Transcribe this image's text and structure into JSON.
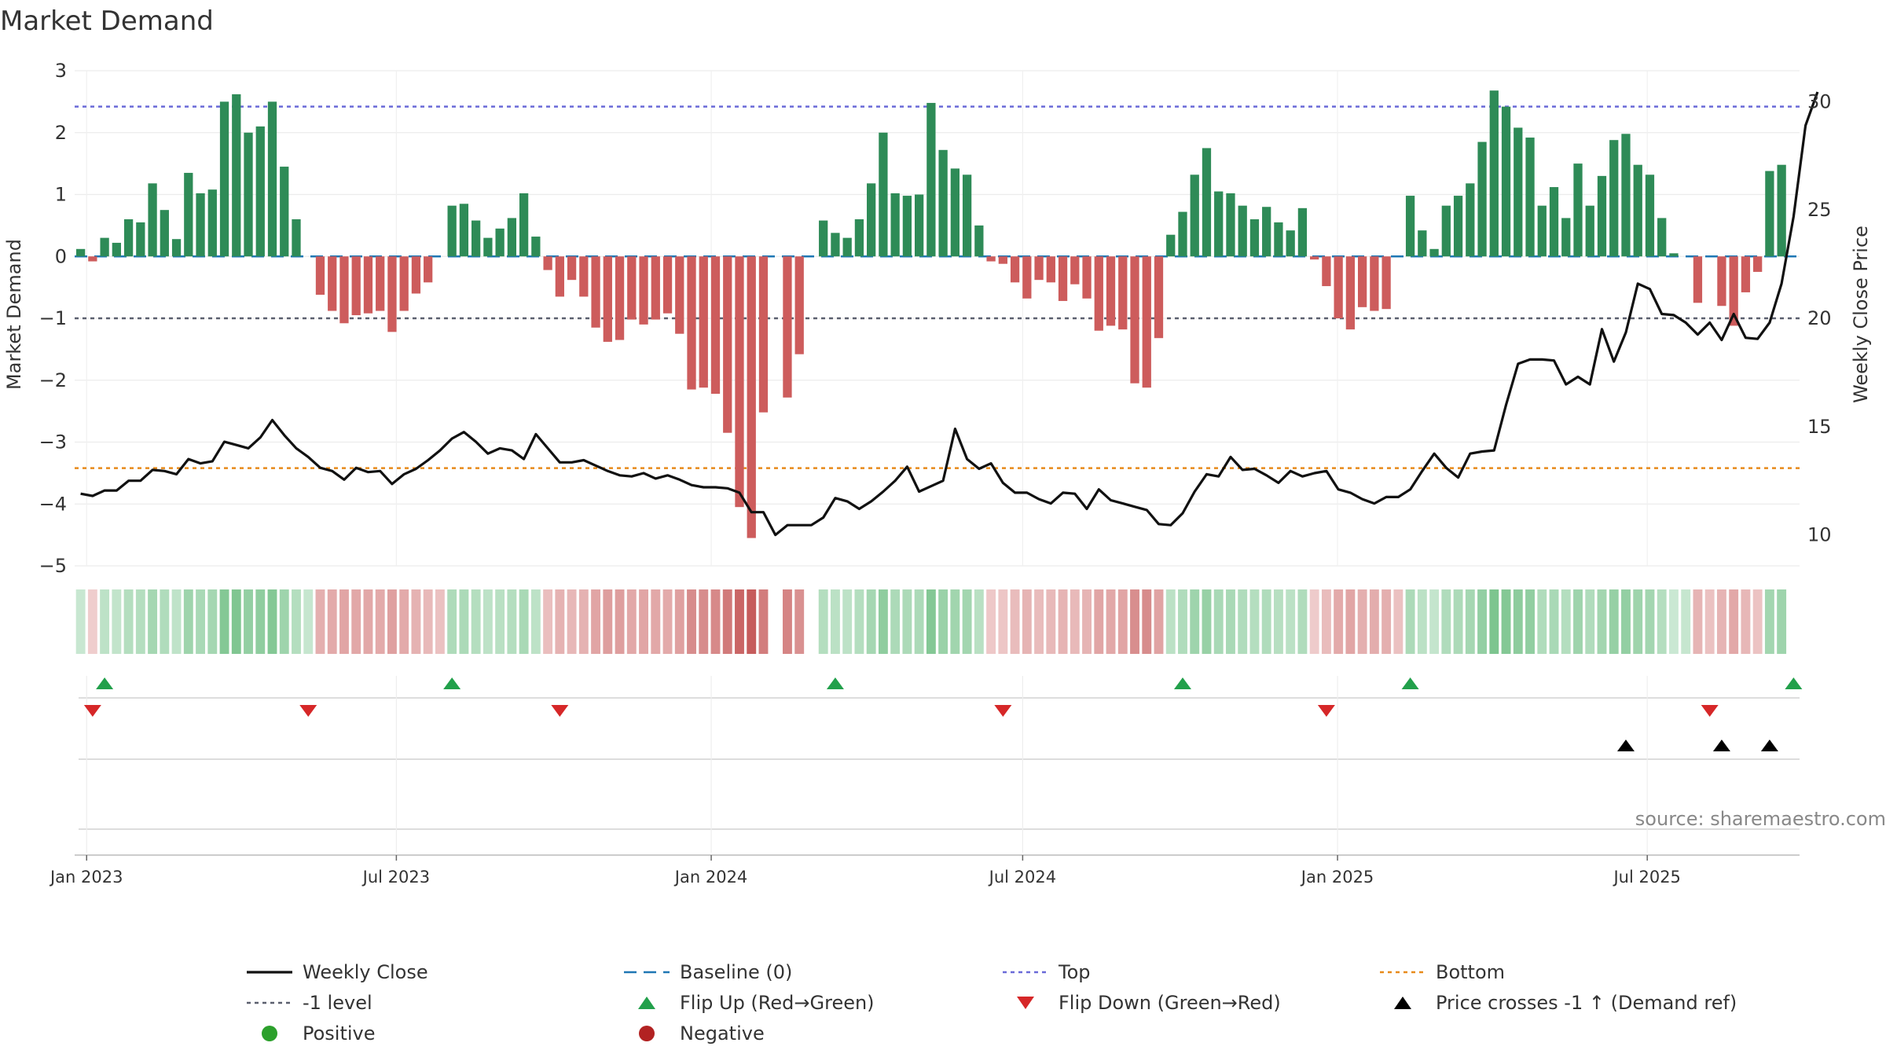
{
  "chart_data": {
    "type": "bar",
    "title": "Market Demand",
    "ylabel": "Market Demand",
    "y2label": "Weekly Close Price",
    "ylim": [
      -5,
      3
    ],
    "y2lim": [
      8.57,
      31.43
    ],
    "yticks": [
      "3",
      "2",
      "1",
      "0",
      "−1",
      "−2",
      "−3",
      "−4",
      "−5"
    ],
    "y2ticks": [
      "30",
      "25",
      "20",
      "15",
      "10"
    ],
    "date_start": "2022-12-25",
    "weeks": 144,
    "xticks": [
      {
        "label": "Jan 2023",
        "date": "2023-01-01"
      },
      {
        "label": "Jul 2023",
        "date": "2023-07-01"
      },
      {
        "label": "Jan 2024",
        "date": "2024-01-01"
      },
      {
        "label": "Jul 2024",
        "date": "2024-07-01"
      },
      {
        "label": "Jan 2025",
        "date": "2025-01-01"
      },
      {
        "label": "Jul 2025",
        "date": "2025-07-01"
      }
    ],
    "reference_lines": {
      "baseline": 0,
      "top": 2.42,
      "minus_one": -1,
      "bottom": -3.42
    },
    "demand": [
      0.12,
      -0.08,
      0.3,
      0.22,
      0.6,
      0.55,
      1.18,
      0.75,
      0.28,
      1.35,
      1.02,
      1.08,
      2.5,
      2.62,
      2.0,
      2.1,
      2.5,
      1.45,
      0.6,
      0,
      -0.62,
      -0.88,
      -1.08,
      -0.95,
      -0.92,
      -0.88,
      -1.22,
      -0.88,
      -0.6,
      -0.42,
      0,
      0.82,
      0.85,
      0.58,
      0.3,
      0.45,
      0.62,
      1.02,
      0.32,
      -0.22,
      -0.65,
      -0.38,
      -0.65,
      -1.15,
      -1.38,
      -1.35,
      -1.02,
      -1.1,
      -1.02,
      -0.92,
      -1.25,
      -2.15,
      -2.12,
      -2.22,
      -2.85,
      -4.05,
      -4.55,
      -2.52,
      0,
      -2.28,
      -1.58,
      0,
      0.58,
      0.38,
      0.3,
      0.6,
      1.18,
      2.0,
      1.02,
      0.98,
      1.0,
      2.48,
      1.72,
      1.42,
      1.32,
      0.5,
      -0.08,
      -0.12,
      -0.42,
      -0.68,
      -0.38,
      -0.42,
      -0.72,
      -0.45,
      -0.68,
      -1.2,
      -1.12,
      -1.18,
      -2.05,
      -2.12,
      -1.32,
      0.35,
      0.72,
      1.32,
      1.75,
      1.05,
      1.02,
      0.82,
      0.6,
      0.8,
      0.55,
      0.42,
      0.78,
      -0.05,
      -0.48,
      -1.0,
      -1.18,
      -0.82,
      -0.88,
      -0.85,
      0,
      0.98,
      0.42,
      0.12,
      0.82,
      0.98,
      1.18,
      1.85,
      2.68,
      2.42,
      2.08,
      1.92,
      0.82,
      1.12,
      0.62,
      1.5,
      0.82,
      1.3,
      1.88,
      1.98,
      1.48,
      1.32,
      0.62,
      0.05,
      0,
      -0.75,
      0,
      -0.8,
      -1.12,
      -0.58,
      -0.25,
      1.38,
      1.48
    ],
    "close": [
      11.9,
      11.8,
      12.05,
      12.05,
      12.5,
      12.5,
      13.0,
      12.95,
      12.8,
      13.5,
      13.3,
      13.4,
      14.3,
      14.15,
      14.0,
      14.5,
      15.3,
      14.6,
      14.0,
      13.6,
      13.1,
      12.95,
      12.55,
      13.1,
      12.9,
      12.95,
      12.35,
      12.8,
      13.05,
      13.45,
      13.9,
      14.45,
      14.75,
      14.3,
      13.75,
      14.0,
      13.9,
      13.5,
      14.65,
      14.0,
      13.35,
      13.35,
      13.45,
      13.2,
      12.95,
      12.75,
      12.7,
      12.85,
      12.6,
      12.75,
      12.55,
      12.3,
      12.2,
      12.2,
      12.15,
      11.95,
      11.05,
      11.05,
      10.0,
      10.45,
      10.45,
      10.45,
      10.8,
      11.7,
      11.55,
      11.2,
      11.55,
      12.0,
      12.5,
      13.15,
      12.0,
      12.25,
      12.5,
      14.9,
      13.5,
      13.05,
      13.3,
      12.4,
      11.95,
      11.95,
      11.65,
      11.45,
      11.95,
      11.9,
      11.2,
      12.1,
      11.6,
      11.45,
      11.3,
      11.15,
      10.5,
      10.45,
      11.0,
      12.0,
      12.8,
      12.7,
      13.6,
      13.0,
      13.05,
      12.75,
      12.4,
      12.95,
      12.7,
      12.85,
      12.95,
      12.1,
      11.95,
      11.65,
      11.45,
      11.75,
      11.75,
      12.1,
      12.95,
      13.75,
      13.1,
      12.65,
      13.75,
      13.85,
      13.9,
      16.0,
      17.9,
      18.1,
      18.1,
      18.05,
      16.95,
      17.3,
      16.95,
      19.5,
      18.0,
      19.35,
      21.6,
      21.35,
      20.2,
      20.15,
      19.8,
      19.25,
      19.8,
      19.0,
      20.2,
      19.1,
      19.05,
      19.8,
      21.6,
      24.7,
      28.9,
      30.45
    ],
    "band_strength": [
      0.18,
      0.1,
      0.28,
      0.24,
      0.36,
      0.36,
      0.5,
      0.4,
      0.26,
      0.56,
      0.46,
      0.5,
      0.8,
      0.84,
      0.66,
      0.7,
      0.8,
      0.56,
      0.36,
      0.2,
      0.34,
      0.38,
      0.42,
      0.4,
      0.4,
      0.38,
      0.46,
      0.38,
      0.32,
      0.26,
      0.2,
      0.42,
      0.44,
      0.36,
      0.28,
      0.32,
      0.36,
      0.46,
      0.28,
      0.22,
      0.32,
      0.28,
      0.32,
      0.42,
      0.48,
      0.48,
      0.4,
      0.42,
      0.4,
      0.38,
      0.46,
      0.62,
      0.62,
      0.64,
      0.76,
      0.92,
      1.0,
      0.74,
      0,
      0.68,
      0.58,
      0,
      0.36,
      0.3,
      0.28,
      0.36,
      0.5,
      0.7,
      0.44,
      0.44,
      0.44,
      0.8,
      0.6,
      0.54,
      0.52,
      0.32,
      0.14,
      0.16,
      0.24,
      0.3,
      0.24,
      0.26,
      0.3,
      0.26,
      0.3,
      0.42,
      0.4,
      0.42,
      0.6,
      0.62,
      0.44,
      0.3,
      0.4,
      0.56,
      0.62,
      0.46,
      0.46,
      0.4,
      0.36,
      0.4,
      0.34,
      0.3,
      0.4,
      0.12,
      0.24,
      0.38,
      0.42,
      0.34,
      0.36,
      0.34,
      0.2,
      0.44,
      0.3,
      0.22,
      0.4,
      0.44,
      0.5,
      0.66,
      0.86,
      0.8,
      0.72,
      0.68,
      0.4,
      0.46,
      0.36,
      0.56,
      0.4,
      0.52,
      0.64,
      0.66,
      0.56,
      0.52,
      0.36,
      0.16,
      0.2,
      0.3,
      0.2,
      0.3,
      0.4,
      0.28,
      0.18,
      0.52,
      0.56
    ],
    "flip_up_weeks": [
      2,
      31,
      63,
      92,
      111,
      143
    ],
    "flip_down_weeks": [
      1,
      19,
      40,
      77,
      104,
      136
    ],
    "cross_up_weeks": [
      129,
      137,
      141
    ],
    "colors": {
      "positive_bar": "#2e8b57",
      "negative_bar": "#cd5c5c",
      "close_line": "#111111",
      "baseline": "#1f77b4",
      "top": "#6a6ad8",
      "minus_one": "#5a5f6e",
      "bottom": "#e88a1a",
      "flip_up": "#22a04b",
      "flip_down": "#d62728",
      "cross": "#000000",
      "positive_dot": "#2ca02c",
      "negative_dot": "#b22222"
    },
    "legend": [
      {
        "label": "Weekly Close",
        "symbol": "line-solid",
        "color": "#111111"
      },
      {
        "label": "Baseline (0)",
        "symbol": "line-dash",
        "color": "#1f77b4"
      },
      {
        "label": "Top",
        "symbol": "line-dot",
        "color": "#6a6ad8"
      },
      {
        "label": "Bottom",
        "symbol": "line-dot",
        "color": "#e88a1a"
      },
      {
        "label": "-1 level",
        "symbol": "line-dot",
        "color": "#5a5f6e"
      },
      {
        "label": "Flip Up (Red→Green)",
        "symbol": "triangle-up",
        "color": "#22a04b"
      },
      {
        "label": "Flip Down (Green→Red)",
        "symbol": "triangle-down",
        "color": "#d62728"
      },
      {
        "label": "Price crosses -1 ↑ (Demand ref)",
        "symbol": "triangle-up",
        "color": "#000000"
      },
      {
        "label": "Positive",
        "symbol": "dot",
        "color": "#2ca02c"
      },
      {
        "label": "Negative",
        "symbol": "dot",
        "color": "#b22222"
      }
    ],
    "source": "source: sharemaestro.com"
  }
}
